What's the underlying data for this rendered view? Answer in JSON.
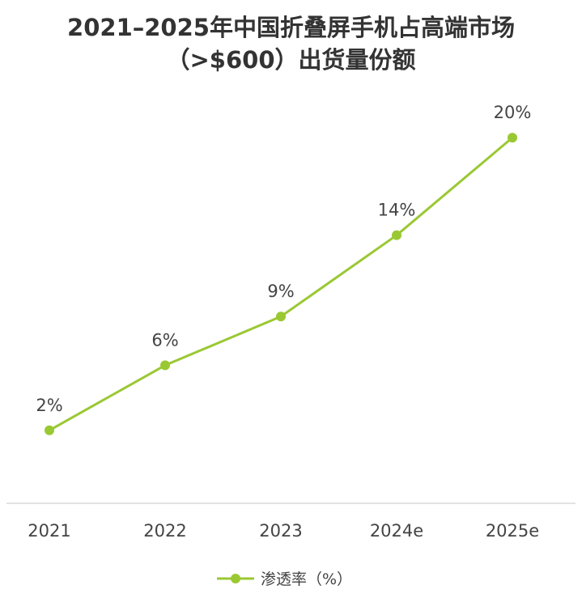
{
  "chart_data": {
    "type": "line",
    "title": "2021–2025年中国折叠屏手机占高端市场",
    "subtitle": "（>$600）出货量份额",
    "categories": [
      "2021",
      "2022",
      "2023",
      "2024e",
      "2025e"
    ],
    "series": [
      {
        "name": "渗透率（%）",
        "values": [
          2,
          6,
          9,
          14,
          20
        ],
        "labels": [
          "2%",
          "6%",
          "9%",
          "14%",
          "20%"
        ],
        "color": "#9ac833"
      }
    ],
    "ylim": [
      -0.5,
      21.5
    ],
    "grid": false,
    "legend_position": "bottom-center",
    "axis_color": "#d9d9d9"
  }
}
